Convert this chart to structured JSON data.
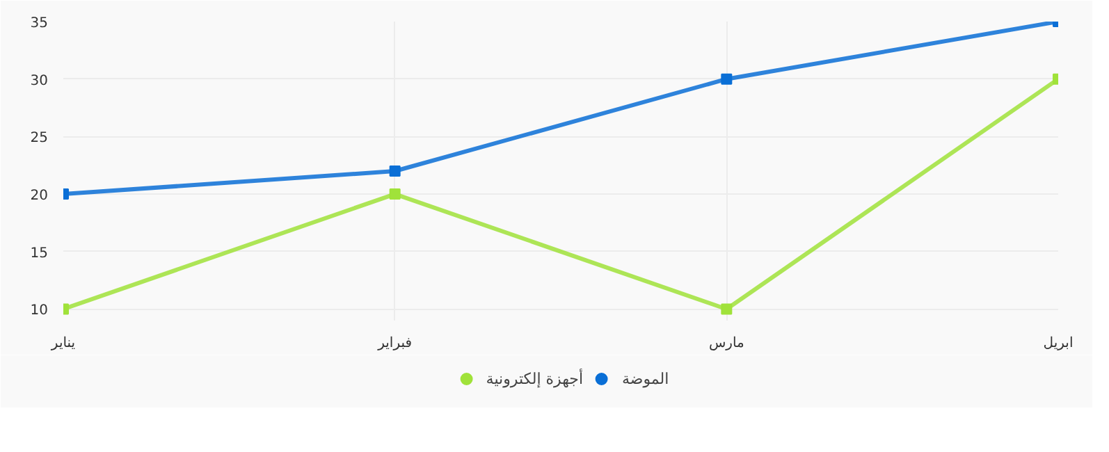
{
  "chart_data": {
    "type": "line",
    "categories": [
      "يناير",
      "فبراير",
      "مارس",
      "ابريل"
    ],
    "series": [
      {
        "name": "أجهزة إلكترونية",
        "color": "#a0e23a",
        "values": [
          10,
          20,
          10,
          30
        ]
      },
      {
        "name": "الموضة",
        "color": "#0a6fd6",
        "values": [
          20,
          22,
          30,
          35
        ]
      }
    ],
    "ylim": [
      9,
      35
    ],
    "yticks": [
      10,
      15,
      20,
      25,
      30,
      35
    ],
    "grid": true,
    "legend": "bottom",
    "marker": "square",
    "line_style": "solid"
  }
}
